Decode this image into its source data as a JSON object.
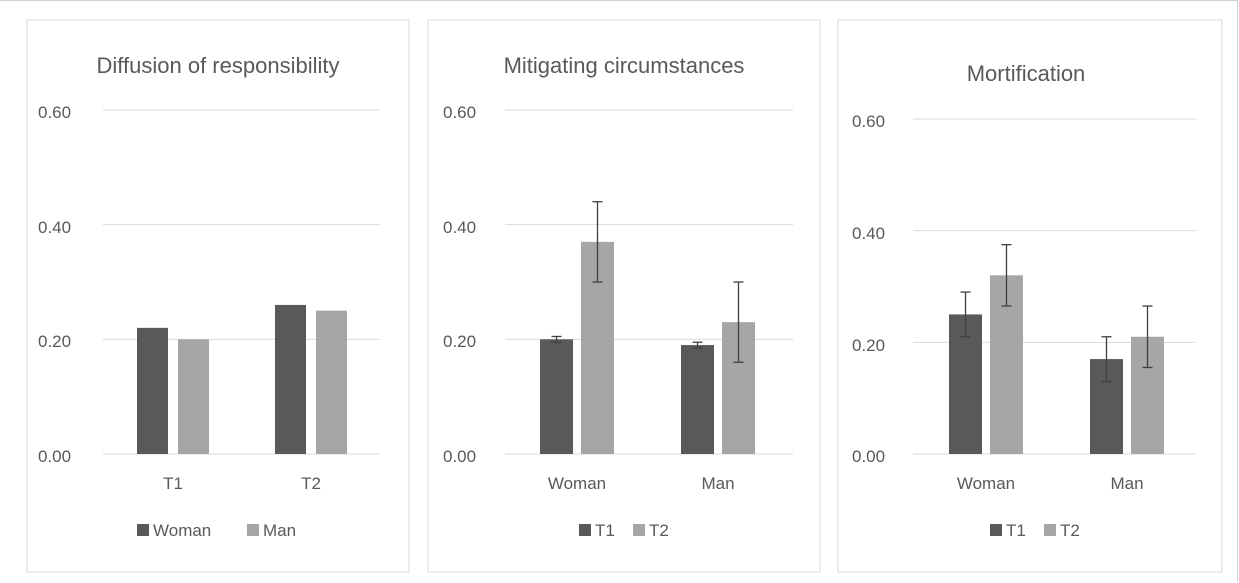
{
  "chart_data": [
    {
      "type": "bar",
      "title": "Diffusion of responsibility",
      "categories": [
        "T1",
        "T2"
      ],
      "series": [
        {
          "name": "Woman",
          "color": "#595959",
          "values": [
            0.22,
            0.26
          ]
        },
        {
          "name": "Man",
          "color": "#a6a6a6",
          "values": [
            0.2,
            0.25
          ]
        }
      ],
      "ylim": [
        0,
        0.6
      ],
      "yticks": [
        "0.00",
        "0.20",
        "0.40",
        "0.60"
      ],
      "grid": true,
      "legend_position": "bottom"
    },
    {
      "type": "bar",
      "title": "Mitigating circumstances",
      "categories": [
        "Woman",
        "Man"
      ],
      "series": [
        {
          "name": "T1",
          "color": "#595959",
          "values": [
            0.2,
            0.19
          ],
          "error": [
            0.005,
            0.005
          ]
        },
        {
          "name": "T2",
          "color": "#a6a6a6",
          "values": [
            0.37,
            0.23
          ],
          "error": [
            0.07,
            0.07
          ]
        }
      ],
      "ylim": [
        0,
        0.6
      ],
      "yticks": [
        "0.00",
        "0.20",
        "0.40",
        "0.60"
      ],
      "grid": true,
      "legend_position": "bottom"
    },
    {
      "type": "bar",
      "title": "Mortification",
      "categories": [
        "Woman",
        "Man"
      ],
      "series": [
        {
          "name": "T1",
          "color": "#595959",
          "values": [
            0.25,
            0.17
          ],
          "error": [
            0.04,
            0.04
          ]
        },
        {
          "name": "T2",
          "color": "#a6a6a6",
          "values": [
            0.32,
            0.21
          ],
          "error": [
            0.055,
            0.055
          ]
        }
      ],
      "ylim": [
        0,
        0.6
      ],
      "yticks": [
        "0.00",
        "0.20",
        "0.40",
        "0.60"
      ],
      "grid": true,
      "legend_position": "bottom"
    }
  ]
}
